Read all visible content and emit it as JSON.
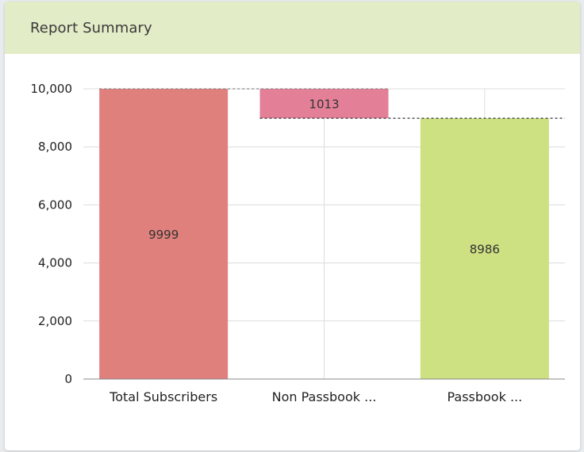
{
  "header": {
    "title": "Report Summary"
  },
  "chart_data": {
    "type": "waterfall",
    "categories": [
      "Total Subscribers",
      "Non Passbook ...",
      "Passbook ..."
    ],
    "bars": [
      {
        "category": "Total Subscribers",
        "start": 0,
        "end": 9999,
        "label": "9999",
        "color": "#e0807c"
      },
      {
        "category": "Non Passbook ...",
        "start": 8986,
        "end": 9999,
        "label": "1013",
        "color": "#e38098"
      },
      {
        "category": "Passbook ...",
        "start": 0,
        "end": 8986,
        "label": "8986",
        "color": "#cde082"
      }
    ],
    "ylim": [
      0,
      10000
    ],
    "yticks": [
      0,
      2000,
      4000,
      6000,
      8000,
      10000
    ],
    "ytick_labels": [
      "0",
      "2,000",
      "4,000",
      "6,000",
      "8,000",
      "10,000"
    ],
    "grid": true,
    "connector_lines": "dashed"
  }
}
